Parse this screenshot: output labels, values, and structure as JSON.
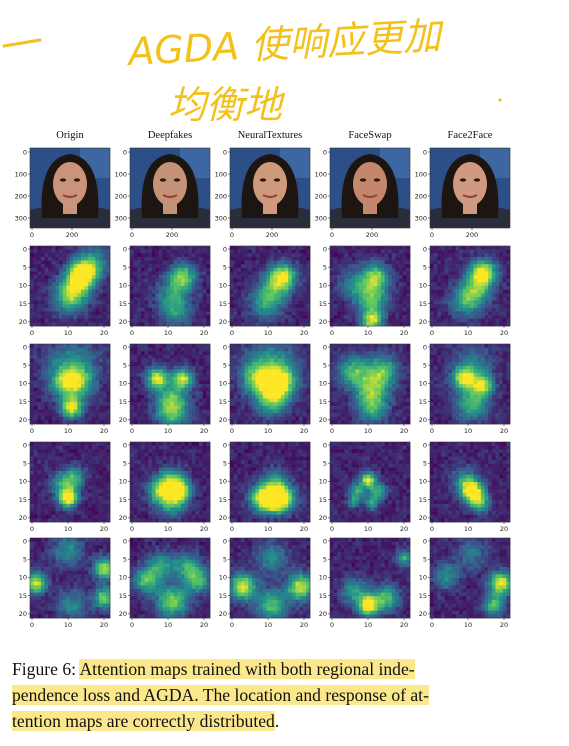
{
  "annotation": {
    "handwriting_line1": "AGDA 使响应更加",
    "handwriting_line2": "均衡地",
    "ink_color": "#f2c21b"
  },
  "figure": {
    "columns": [
      "Origin",
      "Deepfakes",
      "NeuralTextures",
      "FaceSwap",
      "Face2Face"
    ],
    "face_axes": {
      "y_ticks": [
        "0",
        "100",
        "200",
        "300"
      ],
      "x_ticks": [
        "0",
        "200"
      ]
    },
    "map_axes": {
      "y_ticks": [
        "0",
        "5",
        "10",
        "15",
        "20"
      ],
      "x_ticks": [
        "0",
        "10",
        "20"
      ]
    },
    "colormap": [
      "#440154",
      "#3b528b",
      "#21918c",
      "#5ec962",
      "#fde725"
    ],
    "rows": [
      {
        "name": "attention-map-1",
        "cells": [
          {
            "blobs": [
              [
                14,
                7,
                2.5,
                1
              ],
              [
                12,
                11,
                3,
                0.6
              ],
              [
                10,
                14,
                3,
                0.45
              ],
              [
                17,
                4,
                3,
                0.4
              ]
            ]
          },
          {
            "blobs": [
              [
                14,
                8,
                2.5,
                0.7
              ],
              [
                11,
                13,
                3,
                0.4
              ],
              [
                12,
                18,
                3,
                0.35
              ]
            ]
          },
          {
            "blobs": [
              [
                14,
                8,
                2.5,
                0.9
              ],
              [
                11,
                12,
                3,
                0.45
              ],
              [
                9,
                16,
                3,
                0.35
              ]
            ]
          },
          {
            "blobs": [
              [
                12,
                8,
                2.5,
                0.7
              ],
              [
                11,
                14,
                3,
                0.6
              ],
              [
                11,
                20,
                2,
                0.8
              ],
              [
                6,
                10,
                3,
                0.35
              ]
            ]
          },
          {
            "blobs": [
              [
                14,
                7,
                2.5,
                0.95
              ],
              [
                12,
                12,
                3,
                0.5
              ],
              [
                9,
                15,
                3,
                0.4
              ]
            ]
          }
        ]
      },
      {
        "name": "attention-map-2",
        "cells": [
          {
            "blobs": [
              [
                11,
                17,
                2,
                0.9
              ],
              [
                9,
                10,
                3,
                0.5
              ],
              [
                13,
                10,
                3,
                0.5
              ],
              [
                11,
                5,
                5,
                0.35
              ]
            ]
          },
          {
            "blobs": [
              [
                7,
                9,
                2,
                0.9
              ],
              [
                14,
                9,
                2,
                0.8
              ],
              [
                11,
                15,
                3,
                0.55
              ],
              [
                11,
                19,
                3,
                0.45
              ]
            ]
          },
          {
            "blobs": [
              [
                13,
                10,
                3,
                0.9
              ],
              [
                7,
                9,
                3,
                0.6
              ],
              [
                11,
                15,
                3,
                0.6
              ],
              [
                11,
                5,
                5,
                0.4
              ]
            ]
          },
          {
            "blobs": [
              [
                6,
                7,
                3,
                0.6
              ],
              [
                14,
                7,
                3,
                0.6
              ],
              [
                11,
                12,
                3,
                0.55
              ],
              [
                11,
                17,
                3,
                0.5
              ]
            ]
          },
          {
            "blobs": [
              [
                9,
                9,
                2,
                0.8
              ],
              [
                14,
                11,
                2,
                0.7
              ],
              [
                11,
                16,
                3,
                0.55
              ],
              [
                11,
                6,
                4,
                0.35
              ]
            ]
          }
        ]
      },
      {
        "name": "attention-map-3",
        "cells": [
          {
            "blobs": [
              [
                10,
                15,
                1.8,
                1
              ],
              [
                9,
                11,
                2.5,
                0.5
              ],
              [
                12,
                9,
                2,
                0.35
              ]
            ]
          },
          {
            "blobs": [
              [
                13,
                13,
                2.2,
                1
              ],
              [
                8,
                13,
                2.5,
                0.75
              ],
              [
                11,
                10,
                2.5,
                0.45
              ],
              [
                11,
                17,
                2.5,
                0.4
              ]
            ]
          },
          {
            "blobs": [
              [
                11,
                15,
                2.5,
                0.95
              ],
              [
                14,
                15,
                2.5,
                0.75
              ],
              [
                8,
                15,
                2.5,
                0.6
              ],
              [
                12,
                10,
                2.5,
                0.35
              ]
            ]
          },
          {
            "blobs": [
              [
                10,
                10,
                1.5,
                0.9
              ],
              [
                7,
                13,
                1.5,
                0.5
              ],
              [
                13,
                13,
                1.5,
                0.5
              ],
              [
                11,
                16,
                1.5,
                0.45
              ],
              [
                6,
                16,
                1.2,
                0.4
              ]
            ]
          },
          {
            "blobs": [
              [
                11,
                13,
                2,
                1
              ],
              [
                13,
                16,
                2,
                0.6
              ],
              [
                9,
                10,
                2.5,
                0.4
              ]
            ]
          }
        ]
      },
      {
        "name": "attention-map-4",
        "cells": [
          {
            "blobs": [
              [
                1,
                12,
                2,
                0.85
              ],
              [
                20,
                8,
                2,
                0.8
              ],
              [
                20,
                16,
                2,
                0.7
              ],
              [
                10,
                3,
                3,
                0.4
              ],
              [
                11,
                18,
                3,
                0.35
              ]
            ]
          },
          {
            "blobs": [
              [
                11,
                17,
                3,
                0.7
              ],
              [
                4,
                11,
                2.5,
                0.6
              ],
              [
                18,
                11,
                2.5,
                0.6
              ],
              [
                8,
                7,
                2.5,
                0.45
              ],
              [
                15,
                7,
                2.5,
                0.45
              ]
            ]
          },
          {
            "blobs": [
              [
                3,
                13,
                2.5,
                0.85
              ],
              [
                19,
                13,
                2.5,
                0.85
              ],
              [
                11,
                18,
                3,
                0.6
              ],
              [
                11,
                5,
                3,
                0.4
              ]
            ]
          },
          {
            "blobs": [
              [
                10,
                18,
                2,
                1
              ],
              [
                15,
                16,
                2.5,
                0.6
              ],
              [
                6,
                14,
                2.5,
                0.45
              ],
              [
                20,
                5,
                1.5,
                0.55
              ]
            ]
          },
          {
            "blobs": [
              [
                19,
                12,
                2.2,
                0.9
              ],
              [
                17,
                18,
                2,
                0.6
              ],
              [
                4,
                10,
                2.5,
                0.4
              ],
              [
                11,
                4,
                3,
                0.3
              ]
            ]
          }
        ]
      }
    ]
  },
  "caption": {
    "label": "Figure 6:",
    "text_line1": "Attention maps trained with both regional inde-",
    "text_line2": "pendence loss and AGDA. The location and response of at-",
    "text_line3": "tention maps are correctly distributed",
    "end_punct": "."
  }
}
